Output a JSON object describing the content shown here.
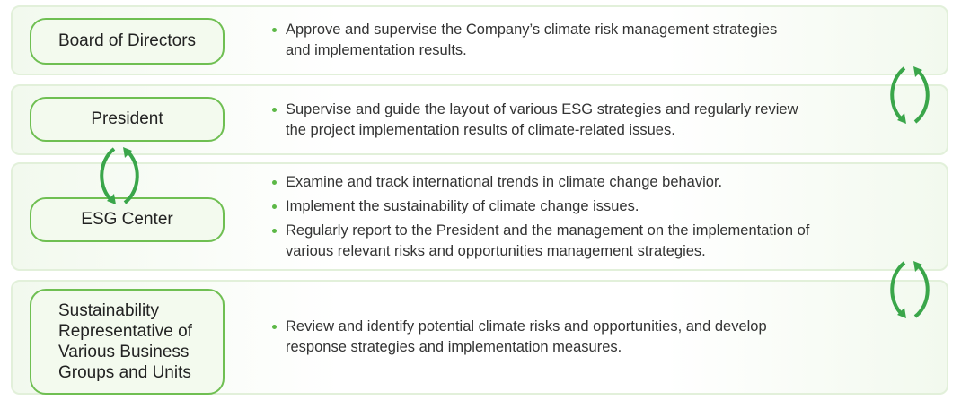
{
  "rows": [
    {
      "label": [
        "Board of Directors"
      ],
      "bullets": [
        [
          "Approve and supervise the Company’s climate risk management strategies",
          "and implementation results."
        ]
      ]
    },
    {
      "label": [
        "President"
      ],
      "bullets": [
        [
          "Supervise and guide the layout of various ESG strategies and regularly review",
          "the project implementation results of climate-related issues."
        ]
      ]
    },
    {
      "label": [
        "ESG Center"
      ],
      "bullets": [
        [
          "Examine and track international trends in climate change behavior."
        ],
        [
          "Implement the sustainability of climate change issues."
        ],
        [
          "Regularly report to the President and the management on the implementation of",
          "various relevant risks and opportunities management strategies."
        ]
      ]
    },
    {
      "label": [
        "Sustainability",
        "Representative of",
        "Various Business",
        "Groups and Units"
      ],
      "bullets": [
        [
          "Review and identify potential climate risks and opportunities, and develop",
          "response strategies and implementation measures."
        ]
      ]
    }
  ]
}
